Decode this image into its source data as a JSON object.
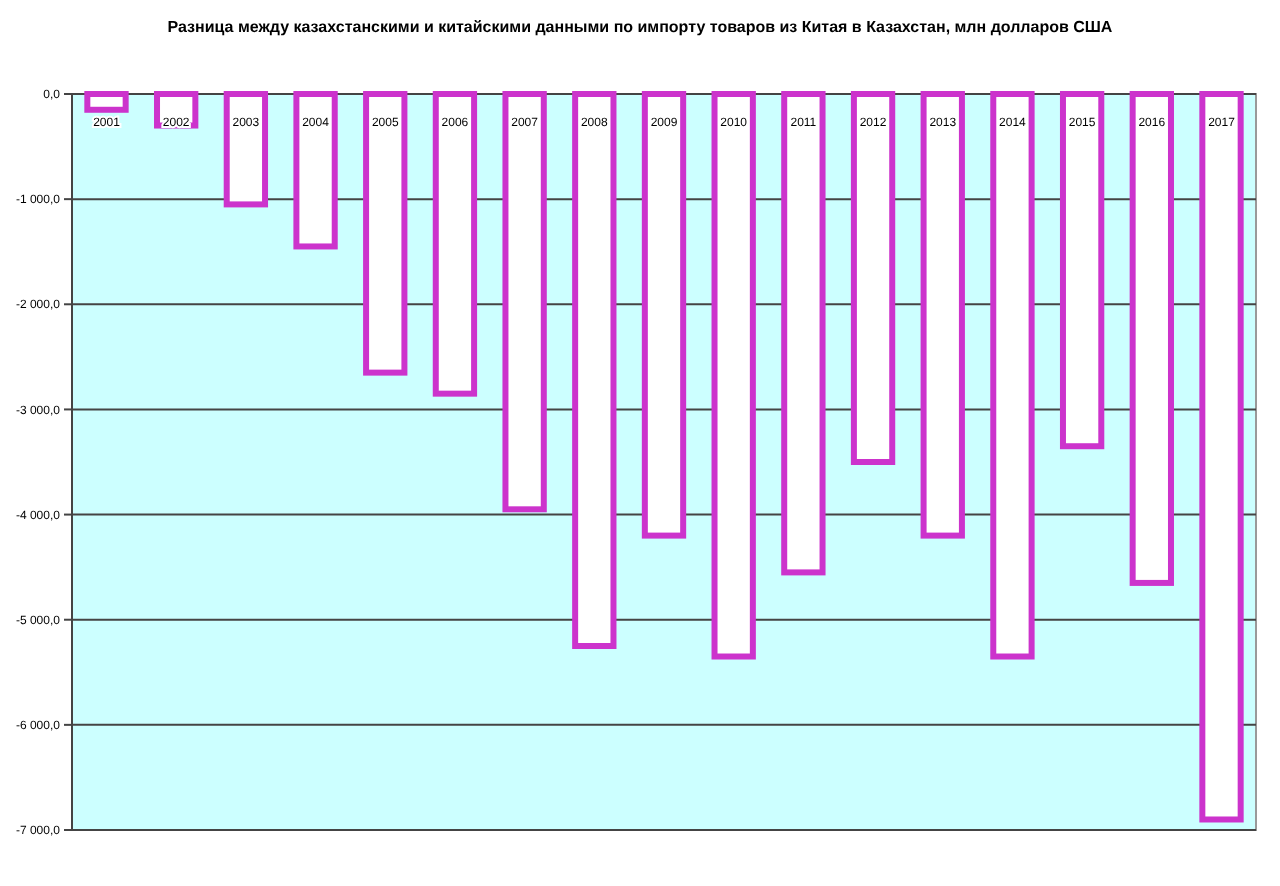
{
  "chart_data": {
    "type": "bar",
    "title": "Разница между казахстанскими и китайскими данными по импорту товаров из Китая в Казахстан, млн долларов США",
    "categories": [
      "2001",
      "2002",
      "2003",
      "2004",
      "2005",
      "2006",
      "2007",
      "2008",
      "2009",
      "2010",
      "2011",
      "2012",
      "2013",
      "2014",
      "2015",
      "2016",
      "2017"
    ],
    "values": [
      -150,
      -300,
      -1050,
      -1450,
      -2650,
      -2850,
      -3950,
      -5250,
      -4200,
      -5350,
      -4550,
      -3500,
      -4200,
      -5350,
      -3350,
      -4650,
      -6900
    ],
    "color": "#cc33cc",
    "ylim": [
      -7000,
      0
    ],
    "yticks": [
      {
        "value": -7000,
        "label": "-7 000,0"
      },
      {
        "value": -6000,
        "label": "-6 000,0"
      },
      {
        "value": -5000,
        "label": "-5 000,0"
      },
      {
        "value": -4000,
        "label": "-4 000,0"
      },
      {
        "value": -3000,
        "label": "-3 000,0"
      },
      {
        "value": -2000,
        "label": "-2 000,0"
      },
      {
        "value": -1000,
        "label": "-1 000,0"
      },
      {
        "value": 0,
        "label": "0,0"
      }
    ],
    "grid": "y"
  }
}
